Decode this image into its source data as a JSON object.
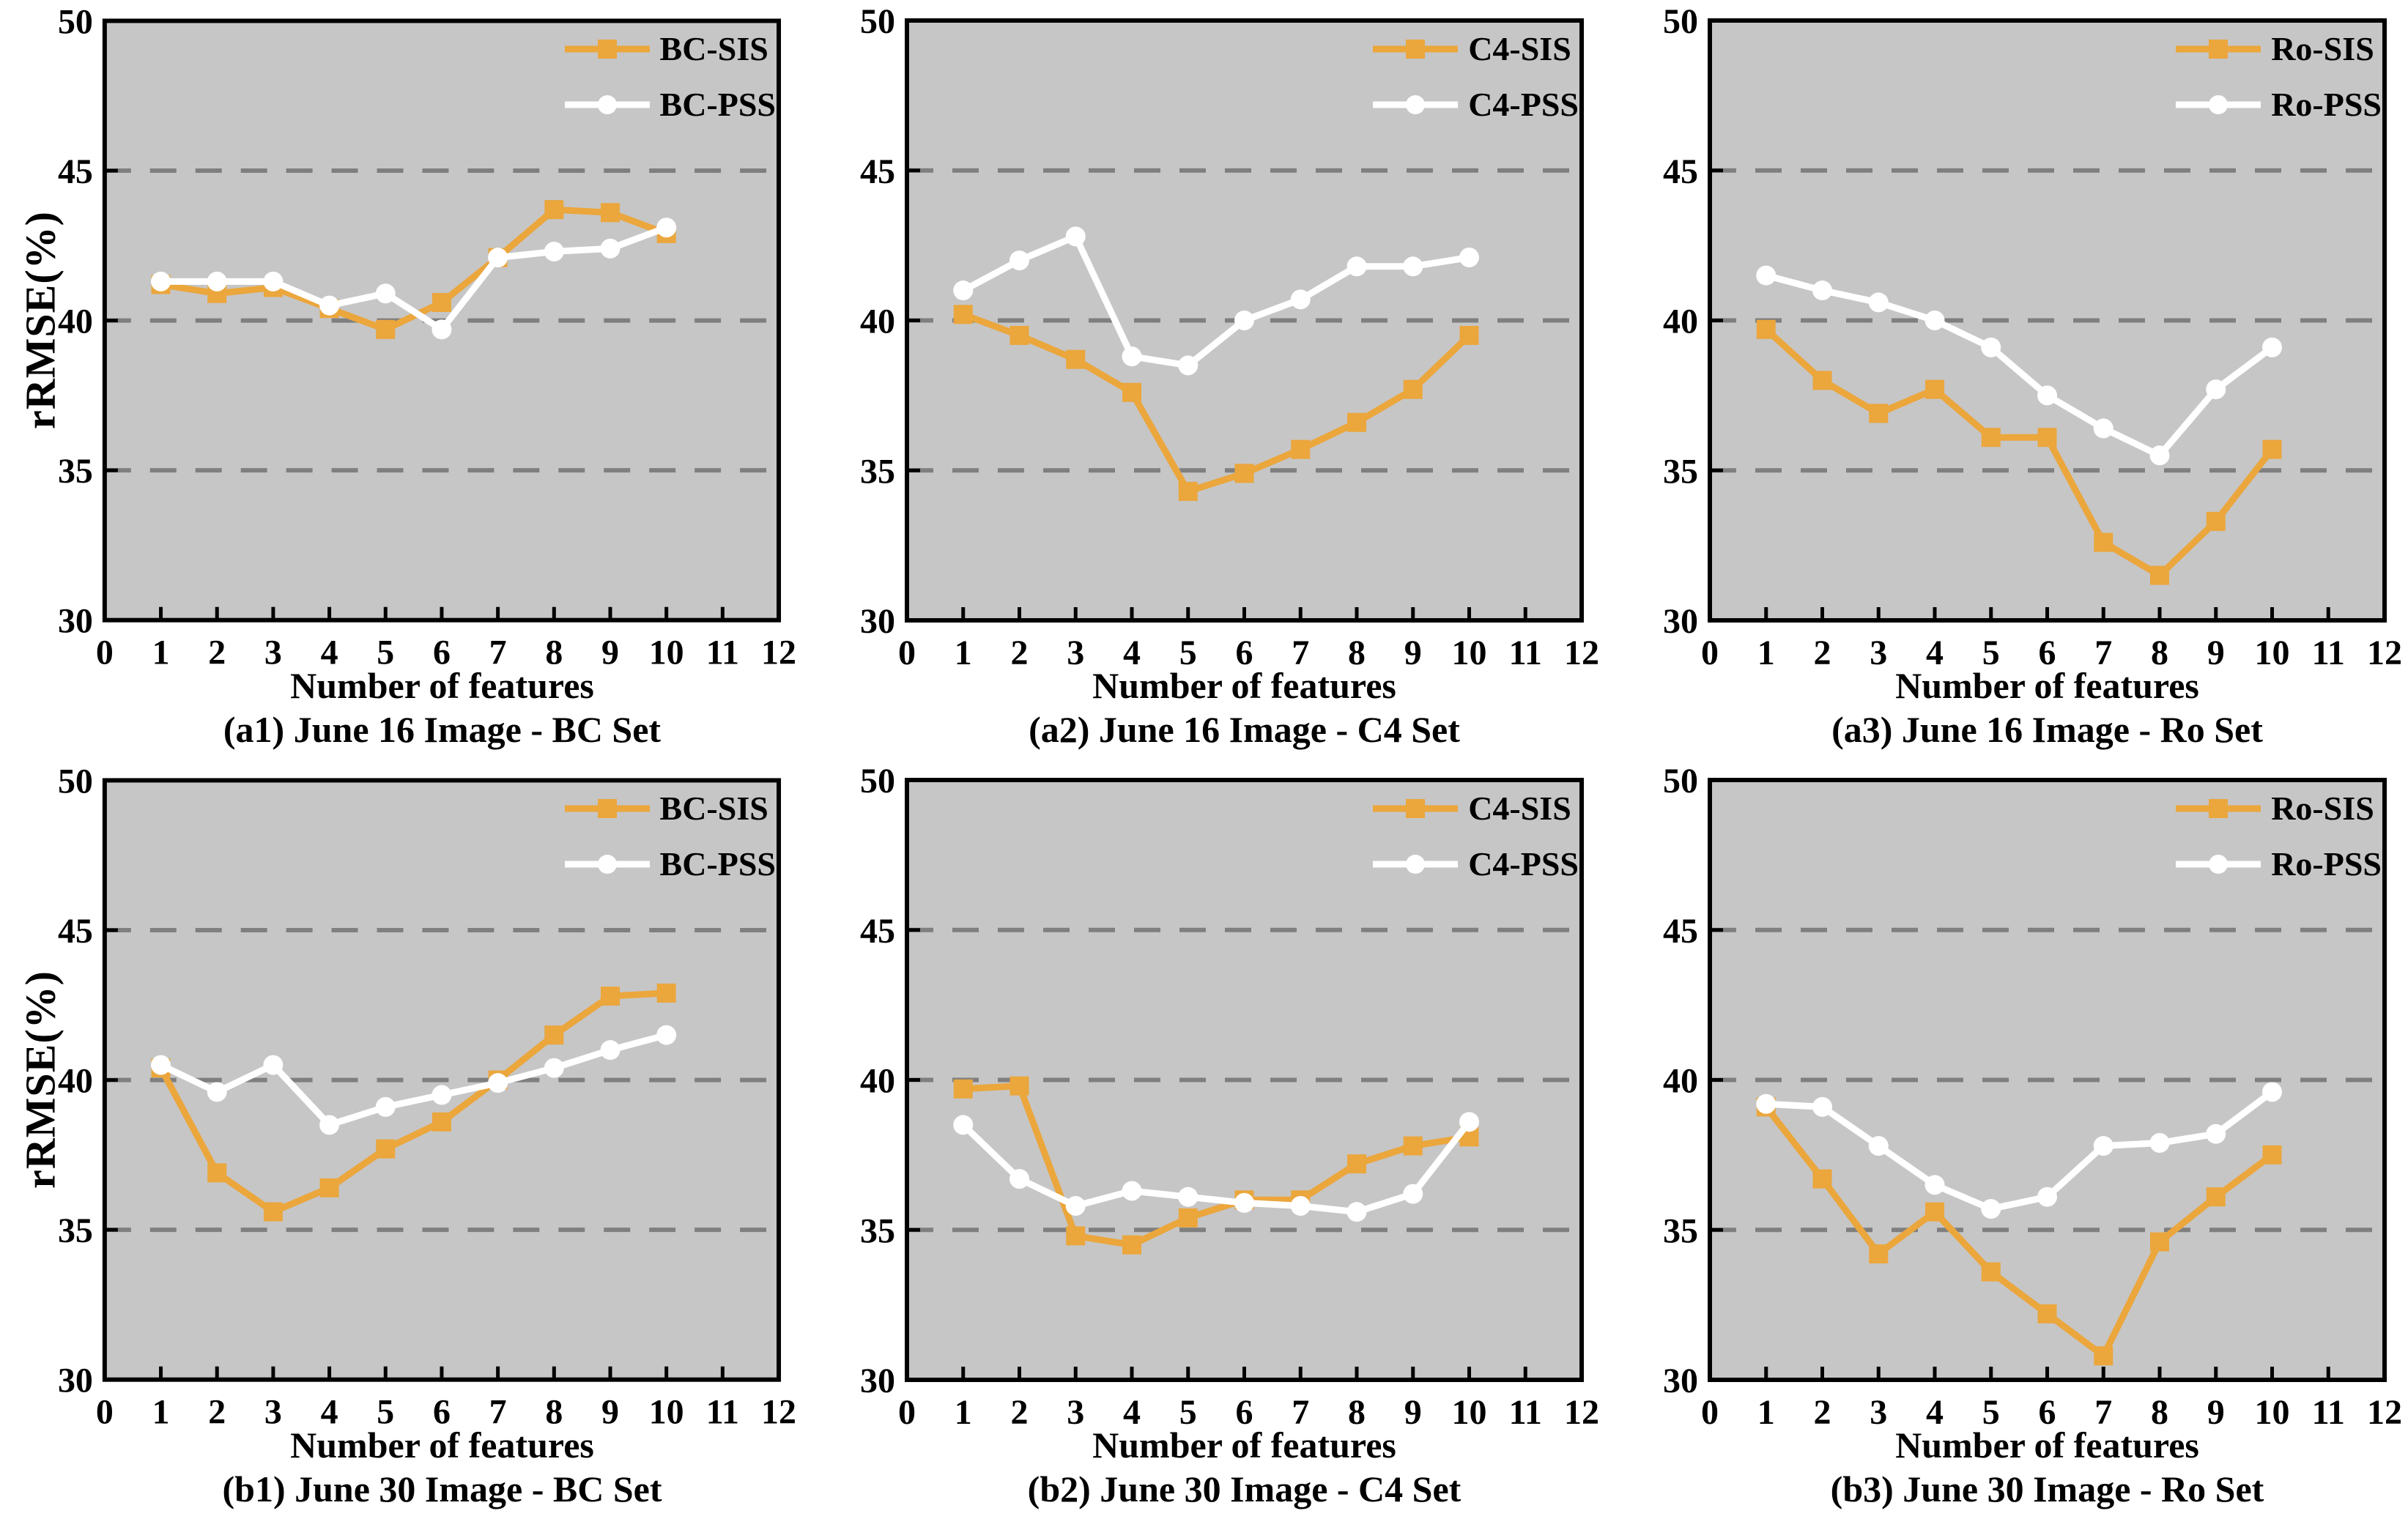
{
  "page": {
    "ylabel": "rRMSE(%)",
    "xlabel": "Number of features"
  },
  "style": {
    "sis_color": "#EBA63C",
    "pss_color": "#FFFFFF",
    "plot_bg": "#C6C6C6",
    "grid_color": "#7F7F7F",
    "frame_color": "#000000"
  },
  "chart_data": [
    {
      "type": "line",
      "title": "(a1) June 16 Image - BC Set",
      "xlabel": "Number of features",
      "ylabel": "rRMSE(%)",
      "x": [
        1,
        2,
        3,
        4,
        5,
        6,
        7,
        8,
        9,
        10
      ],
      "series": [
        {
          "name": "BC-SIS",
          "color": "#EBA63C",
          "marker": "square",
          "values": [
            41.2,
            40.9,
            41.1,
            40.4,
            39.7,
            40.6,
            42.1,
            43.7,
            43.6,
            42.9
          ]
        },
        {
          "name": "BC-PSS",
          "color": "#FFFFFF",
          "marker": "circle",
          "values": [
            41.3,
            41.3,
            41.3,
            40.5,
            40.9,
            39.7,
            42.1,
            42.3,
            42.4,
            43.1
          ]
        }
      ],
      "xlim": [
        0,
        12
      ],
      "ylim": [
        30,
        50
      ],
      "xticks": [
        0,
        1,
        2,
        3,
        4,
        5,
        6,
        7,
        8,
        9,
        10,
        11,
        12
      ],
      "yticks": [
        30,
        35,
        40,
        45,
        50
      ],
      "gridlines": [
        35,
        40,
        45
      ],
      "legend_position": "top-right"
    },
    {
      "type": "line",
      "title": "(a2) June 16 Image - C4 Set",
      "xlabel": "Number of features",
      "ylabel": "",
      "x": [
        1,
        2,
        3,
        4,
        5,
        6,
        7,
        8,
        9,
        10
      ],
      "series": [
        {
          "name": "C4-SIS",
          "color": "#EBA63C",
          "marker": "square",
          "values": [
            40.2,
            39.5,
            38.7,
            37.6,
            34.3,
            34.9,
            35.7,
            36.6,
            37.7,
            39.5
          ]
        },
        {
          "name": "C4-PSS",
          "color": "#FFFFFF",
          "marker": "circle",
          "values": [
            41.0,
            42.0,
            42.8,
            38.8,
            38.5,
            40.0,
            40.7,
            41.8,
            41.8,
            42.1
          ]
        }
      ],
      "xlim": [
        0,
        12
      ],
      "ylim": [
        30,
        50
      ],
      "xticks": [
        0,
        1,
        2,
        3,
        4,
        5,
        6,
        7,
        8,
        9,
        10,
        11,
        12
      ],
      "yticks": [
        30,
        35,
        40,
        45,
        50
      ],
      "gridlines": [
        35,
        40,
        45
      ],
      "legend_position": "top-right"
    },
    {
      "type": "line",
      "title": "(a3) June 16 Image - Ro Set",
      "xlabel": "Number of features",
      "ylabel": "",
      "x": [
        1,
        2,
        3,
        4,
        5,
        6,
        7,
        8,
        9,
        10
      ],
      "series": [
        {
          "name": "Ro-SIS",
          "color": "#EBA63C",
          "marker": "square",
          "values": [
            39.7,
            38.0,
            36.9,
            37.7,
            36.1,
            36.1,
            32.6,
            31.5,
            33.3,
            35.7
          ]
        },
        {
          "name": "Ro-PSS",
          "color": "#FFFFFF",
          "marker": "circle",
          "values": [
            41.5,
            41.0,
            40.6,
            40.0,
            39.1,
            37.5,
            36.4,
            35.5,
            37.7,
            39.1
          ]
        }
      ],
      "xlim": [
        0,
        12
      ],
      "ylim": [
        30,
        50
      ],
      "xticks": [
        0,
        1,
        2,
        3,
        4,
        5,
        6,
        7,
        8,
        9,
        10,
        11,
        12
      ],
      "yticks": [
        30,
        35,
        40,
        45,
        50
      ],
      "gridlines": [
        35,
        40,
        45
      ],
      "legend_position": "top-right"
    },
    {
      "type": "line",
      "title": "(b1) June 30 Image - BC Set",
      "xlabel": "Number of features",
      "ylabel": "rRMSE(%)",
      "x": [
        1,
        2,
        3,
        4,
        5,
        6,
        7,
        8,
        9,
        10
      ],
      "series": [
        {
          "name": "BC-SIS",
          "color": "#EBA63C",
          "marker": "square",
          "values": [
            40.4,
            36.9,
            35.6,
            36.4,
            37.7,
            38.6,
            40.0,
            41.5,
            42.8,
            42.9
          ]
        },
        {
          "name": "BC-PSS",
          "color": "#FFFFFF",
          "marker": "circle",
          "values": [
            40.5,
            39.6,
            40.5,
            38.5,
            39.1,
            39.5,
            39.9,
            40.4,
            41.0,
            41.5
          ]
        }
      ],
      "xlim": [
        0,
        12
      ],
      "ylim": [
        30,
        50
      ],
      "xticks": [
        0,
        1,
        2,
        3,
        4,
        5,
        6,
        7,
        8,
        9,
        10,
        11,
        12
      ],
      "yticks": [
        30,
        35,
        40,
        45,
        50
      ],
      "gridlines": [
        35,
        40,
        45
      ],
      "legend_position": "top-right"
    },
    {
      "type": "line",
      "title": "(b2) June 30 Image - C4 Set",
      "xlabel": "Number of features",
      "ylabel": "",
      "x": [
        1,
        2,
        3,
        4,
        5,
        6,
        7,
        8,
        9,
        10
      ],
      "series": [
        {
          "name": "C4-SIS",
          "color": "#EBA63C",
          "marker": "square",
          "values": [
            39.7,
            39.8,
            34.8,
            34.5,
            35.4,
            36.0,
            36.0,
            37.2,
            37.8,
            38.1
          ]
        },
        {
          "name": "C4-PSS",
          "color": "#FFFFFF",
          "marker": "circle",
          "values": [
            38.5,
            36.7,
            35.8,
            36.3,
            36.1,
            35.9,
            35.8,
            35.6,
            36.2,
            38.6
          ]
        }
      ],
      "xlim": [
        0,
        12
      ],
      "ylim": [
        30,
        50
      ],
      "xticks": [
        0,
        1,
        2,
        3,
        4,
        5,
        6,
        7,
        8,
        9,
        10,
        11,
        12
      ],
      "yticks": [
        30,
        35,
        40,
        45,
        50
      ],
      "gridlines": [
        35,
        40,
        45
      ],
      "legend_position": "top-right"
    },
    {
      "type": "line",
      "title": "(b3) June 30 Image - Ro Set",
      "xlabel": "Number of features",
      "ylabel": "",
      "x": [
        1,
        2,
        3,
        4,
        5,
        6,
        7,
        8,
        9,
        10
      ],
      "series": [
        {
          "name": "Ro-SIS",
          "color": "#EBA63C",
          "marker": "square",
          "values": [
            39.1,
            36.7,
            34.2,
            35.6,
            33.6,
            32.2,
            30.8,
            34.6,
            36.1,
            37.5
          ]
        },
        {
          "name": "Ro-PSS",
          "color": "#FFFFFF",
          "marker": "circle",
          "values": [
            39.2,
            39.1,
            37.8,
            36.5,
            35.7,
            36.1,
            37.8,
            37.9,
            38.2,
            39.6
          ]
        }
      ],
      "xlim": [
        0,
        12
      ],
      "ylim": [
        30,
        50
      ],
      "xticks": [
        0,
        1,
        2,
        3,
        4,
        5,
        6,
        7,
        8,
        9,
        10,
        11,
        12
      ],
      "yticks": [
        30,
        35,
        40,
        45,
        50
      ],
      "gridlines": [
        35,
        40,
        45
      ],
      "legend_position": "top-right"
    }
  ]
}
